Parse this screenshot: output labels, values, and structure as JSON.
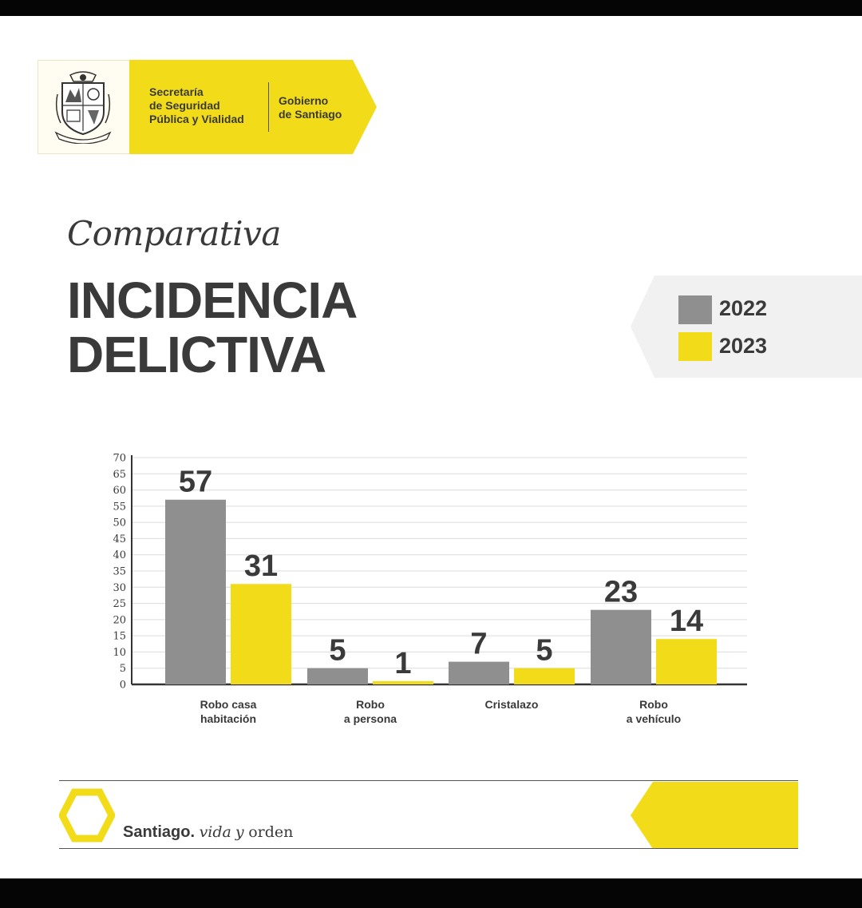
{
  "header": {
    "agency": "Secretaría\nde Seguridad\nPública y Vialidad",
    "government": "Gobierno\nde Santiago"
  },
  "subtitle": "Comparativa",
  "title": "INCIDENCIA\nDELICTIVA",
  "legend": [
    {
      "label": "2022",
      "color": "#8f8f8f"
    },
    {
      "label": "2023",
      "color": "#f2dc1a"
    }
  ],
  "chart_data": {
    "type": "bar",
    "title": "INCIDENCIA DELICTIVA",
    "categories": [
      [
        "Robo casa",
        "habitación"
      ],
      [
        "Robo",
        "a persona"
      ],
      [
        "Cristalazo"
      ],
      [
        "Robo",
        "a vehículo"
      ]
    ],
    "series": [
      {
        "name": "2022",
        "values": [
          57,
          5,
          7,
          23
        ],
        "color": "#8f8f8f"
      },
      {
        "name": "2023",
        "values": [
          31,
          1,
          5,
          14
        ],
        "color": "#f2dc1a"
      }
    ],
    "ylim": [
      0,
      70
    ],
    "yticks": [
      0,
      5,
      10,
      15,
      20,
      25,
      30,
      35,
      40,
      45,
      50,
      55,
      60,
      65,
      70
    ],
    "grid": true,
    "xlabel": "",
    "ylabel": ""
  },
  "footer": {
    "brand": "Santiago.",
    "slogan_italic": "vida",
    "slogan_italic2": "y",
    "slogan_rest": "orden"
  },
  "colors": {
    "accent": "#f2dc1a",
    "text": "#3a3a3a",
    "gray": "#8f8f8f"
  }
}
